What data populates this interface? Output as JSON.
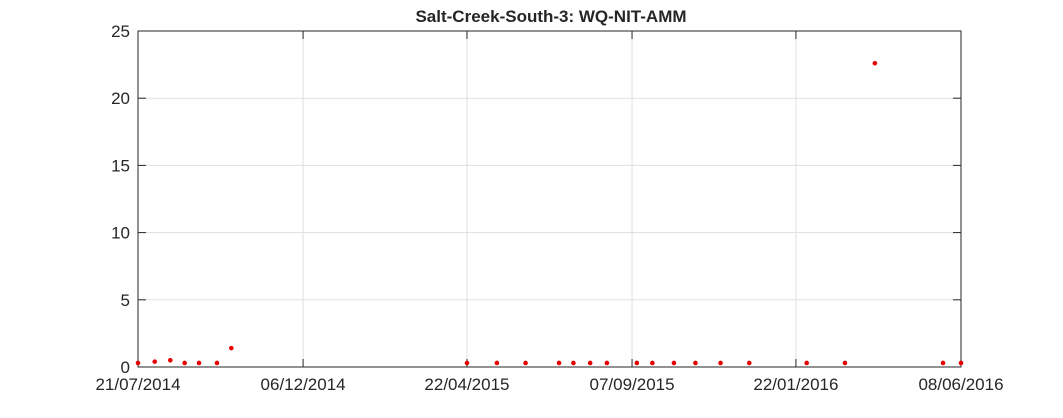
{
  "chart_data": {
    "type": "scatter",
    "title": "Salt-Creek-South-3: WQ-NIT-AMM",
    "xlabel": "",
    "ylabel": "",
    "x_tick_labels": [
      "21/07/2014",
      "06/12/2014",
      "22/04/2015",
      "07/09/2015",
      "22/01/2016",
      "08/06/2016"
    ],
    "x_ticks": [
      "2014-07-21",
      "2014-12-06",
      "2015-04-22",
      "2015-09-07",
      "2016-01-22",
      "2016-06-08"
    ],
    "xlim": [
      "2014-07-21",
      "2016-06-08"
    ],
    "y_ticks": [
      0,
      5,
      10,
      15,
      20,
      25
    ],
    "ylim": [
      0,
      25
    ],
    "grid": true,
    "marker_color": "#e60000",
    "series": [
      {
        "points": [
          {
            "x": "2014-07-21",
            "y": 0.3
          },
          {
            "x": "2014-08-04",
            "y": 0.4
          },
          {
            "x": "2014-08-17",
            "y": 0.5
          },
          {
            "x": "2014-08-29",
            "y": 0.3
          },
          {
            "x": "2014-09-10",
            "y": 0.3
          },
          {
            "x": "2014-09-25",
            "y": 0.3
          },
          {
            "x": "2014-10-07",
            "y": 1.4
          },
          {
            "x": "2015-04-22",
            "y": 0.3
          },
          {
            "x": "2015-05-17",
            "y": 0.3
          },
          {
            "x": "2015-06-10",
            "y": 0.3
          },
          {
            "x": "2015-07-08",
            "y": 0.3
          },
          {
            "x": "2015-07-20",
            "y": 0.3
          },
          {
            "x": "2015-08-03",
            "y": 0.3
          },
          {
            "x": "2015-08-17",
            "y": 0.3
          },
          {
            "x": "2015-09-11",
            "y": 0.3
          },
          {
            "x": "2015-09-24",
            "y": 0.3
          },
          {
            "x": "2015-10-12",
            "y": 0.3
          },
          {
            "x": "2015-10-30",
            "y": 0.3
          },
          {
            "x": "2015-11-20",
            "y": 0.3
          },
          {
            "x": "2015-12-14",
            "y": 0.3
          },
          {
            "x": "2016-01-31",
            "y": 0.3
          },
          {
            "x": "2016-03-03",
            "y": 0.3
          },
          {
            "x": "2016-03-28",
            "y": 22.6
          },
          {
            "x": "2016-05-24",
            "y": 0.3
          },
          {
            "x": "2016-06-08",
            "y": 0.3
          }
        ]
      }
    ]
  }
}
